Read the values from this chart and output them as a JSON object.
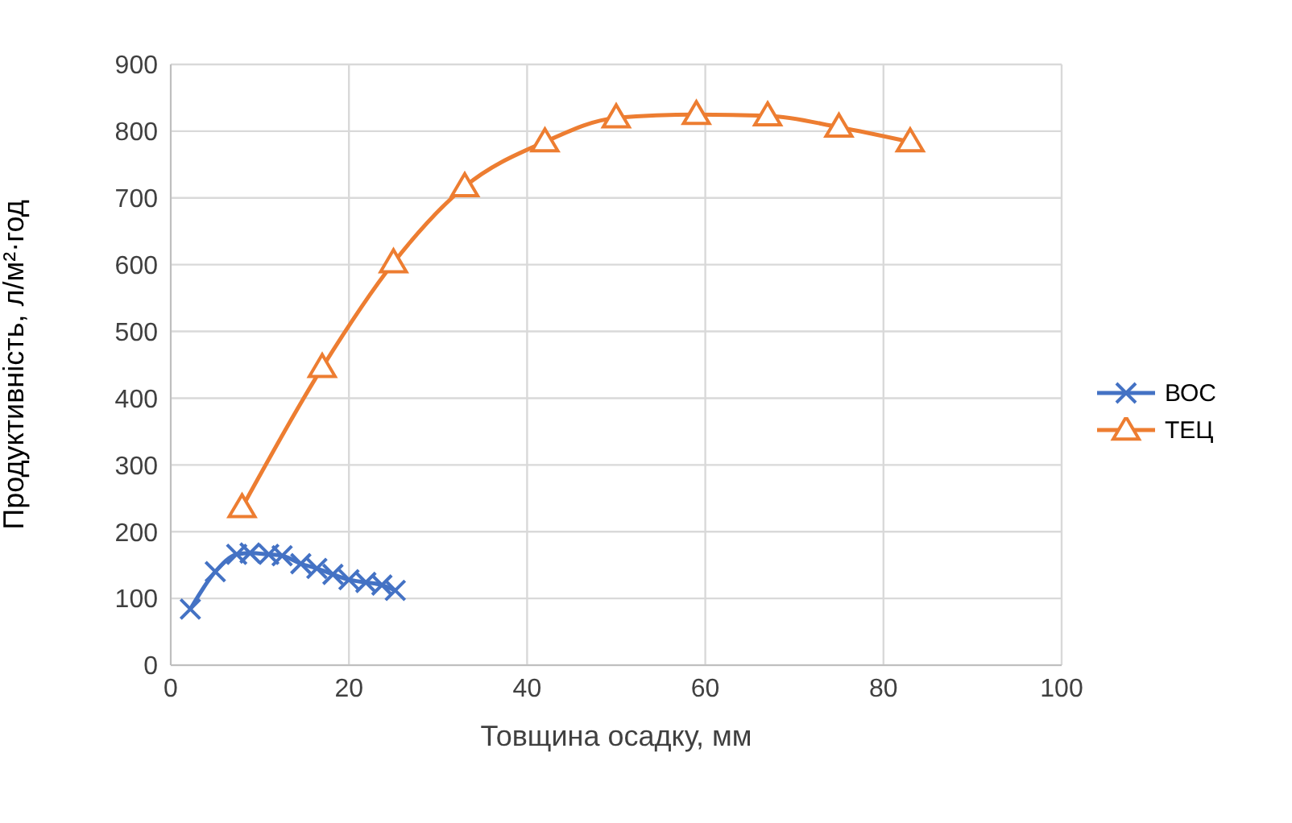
{
  "chart_data": {
    "type": "line",
    "xlabel": "Товщина осадку, мм",
    "ylabel": "Продуктивність, л/м²·год",
    "xlim": [
      0,
      100
    ],
    "xticks": [
      0,
      20,
      40,
      60,
      80,
      100
    ],
    "ylim": [
      0,
      900
    ],
    "yticks": [
      0,
      100,
      200,
      300,
      400,
      500,
      600,
      700,
      800,
      900
    ],
    "grid": true,
    "legend": "right",
    "series": [
      {
        "name": "ВОС",
        "color": "#4472c4",
        "marker": "cross",
        "x": [
          2.2,
          5,
          7.4,
          8.9,
          11,
          12.5,
          14.6,
          16.4,
          18.2,
          20,
          21.9,
          23.7,
          25.2
        ],
        "values": [
          84,
          140,
          166,
          168,
          166,
          164,
          152,
          145,
          136,
          128,
          124,
          120,
          112
        ]
      },
      {
        "name": "ТЕЦ",
        "color": "#ed7d31",
        "marker": "triangle",
        "x": [
          8,
          17,
          25,
          33,
          42,
          50,
          59,
          67,
          75,
          83
        ],
        "values": [
          236,
          446,
          603,
          717,
          784,
          820,
          825,
          823,
          806,
          784
        ]
      }
    ]
  }
}
